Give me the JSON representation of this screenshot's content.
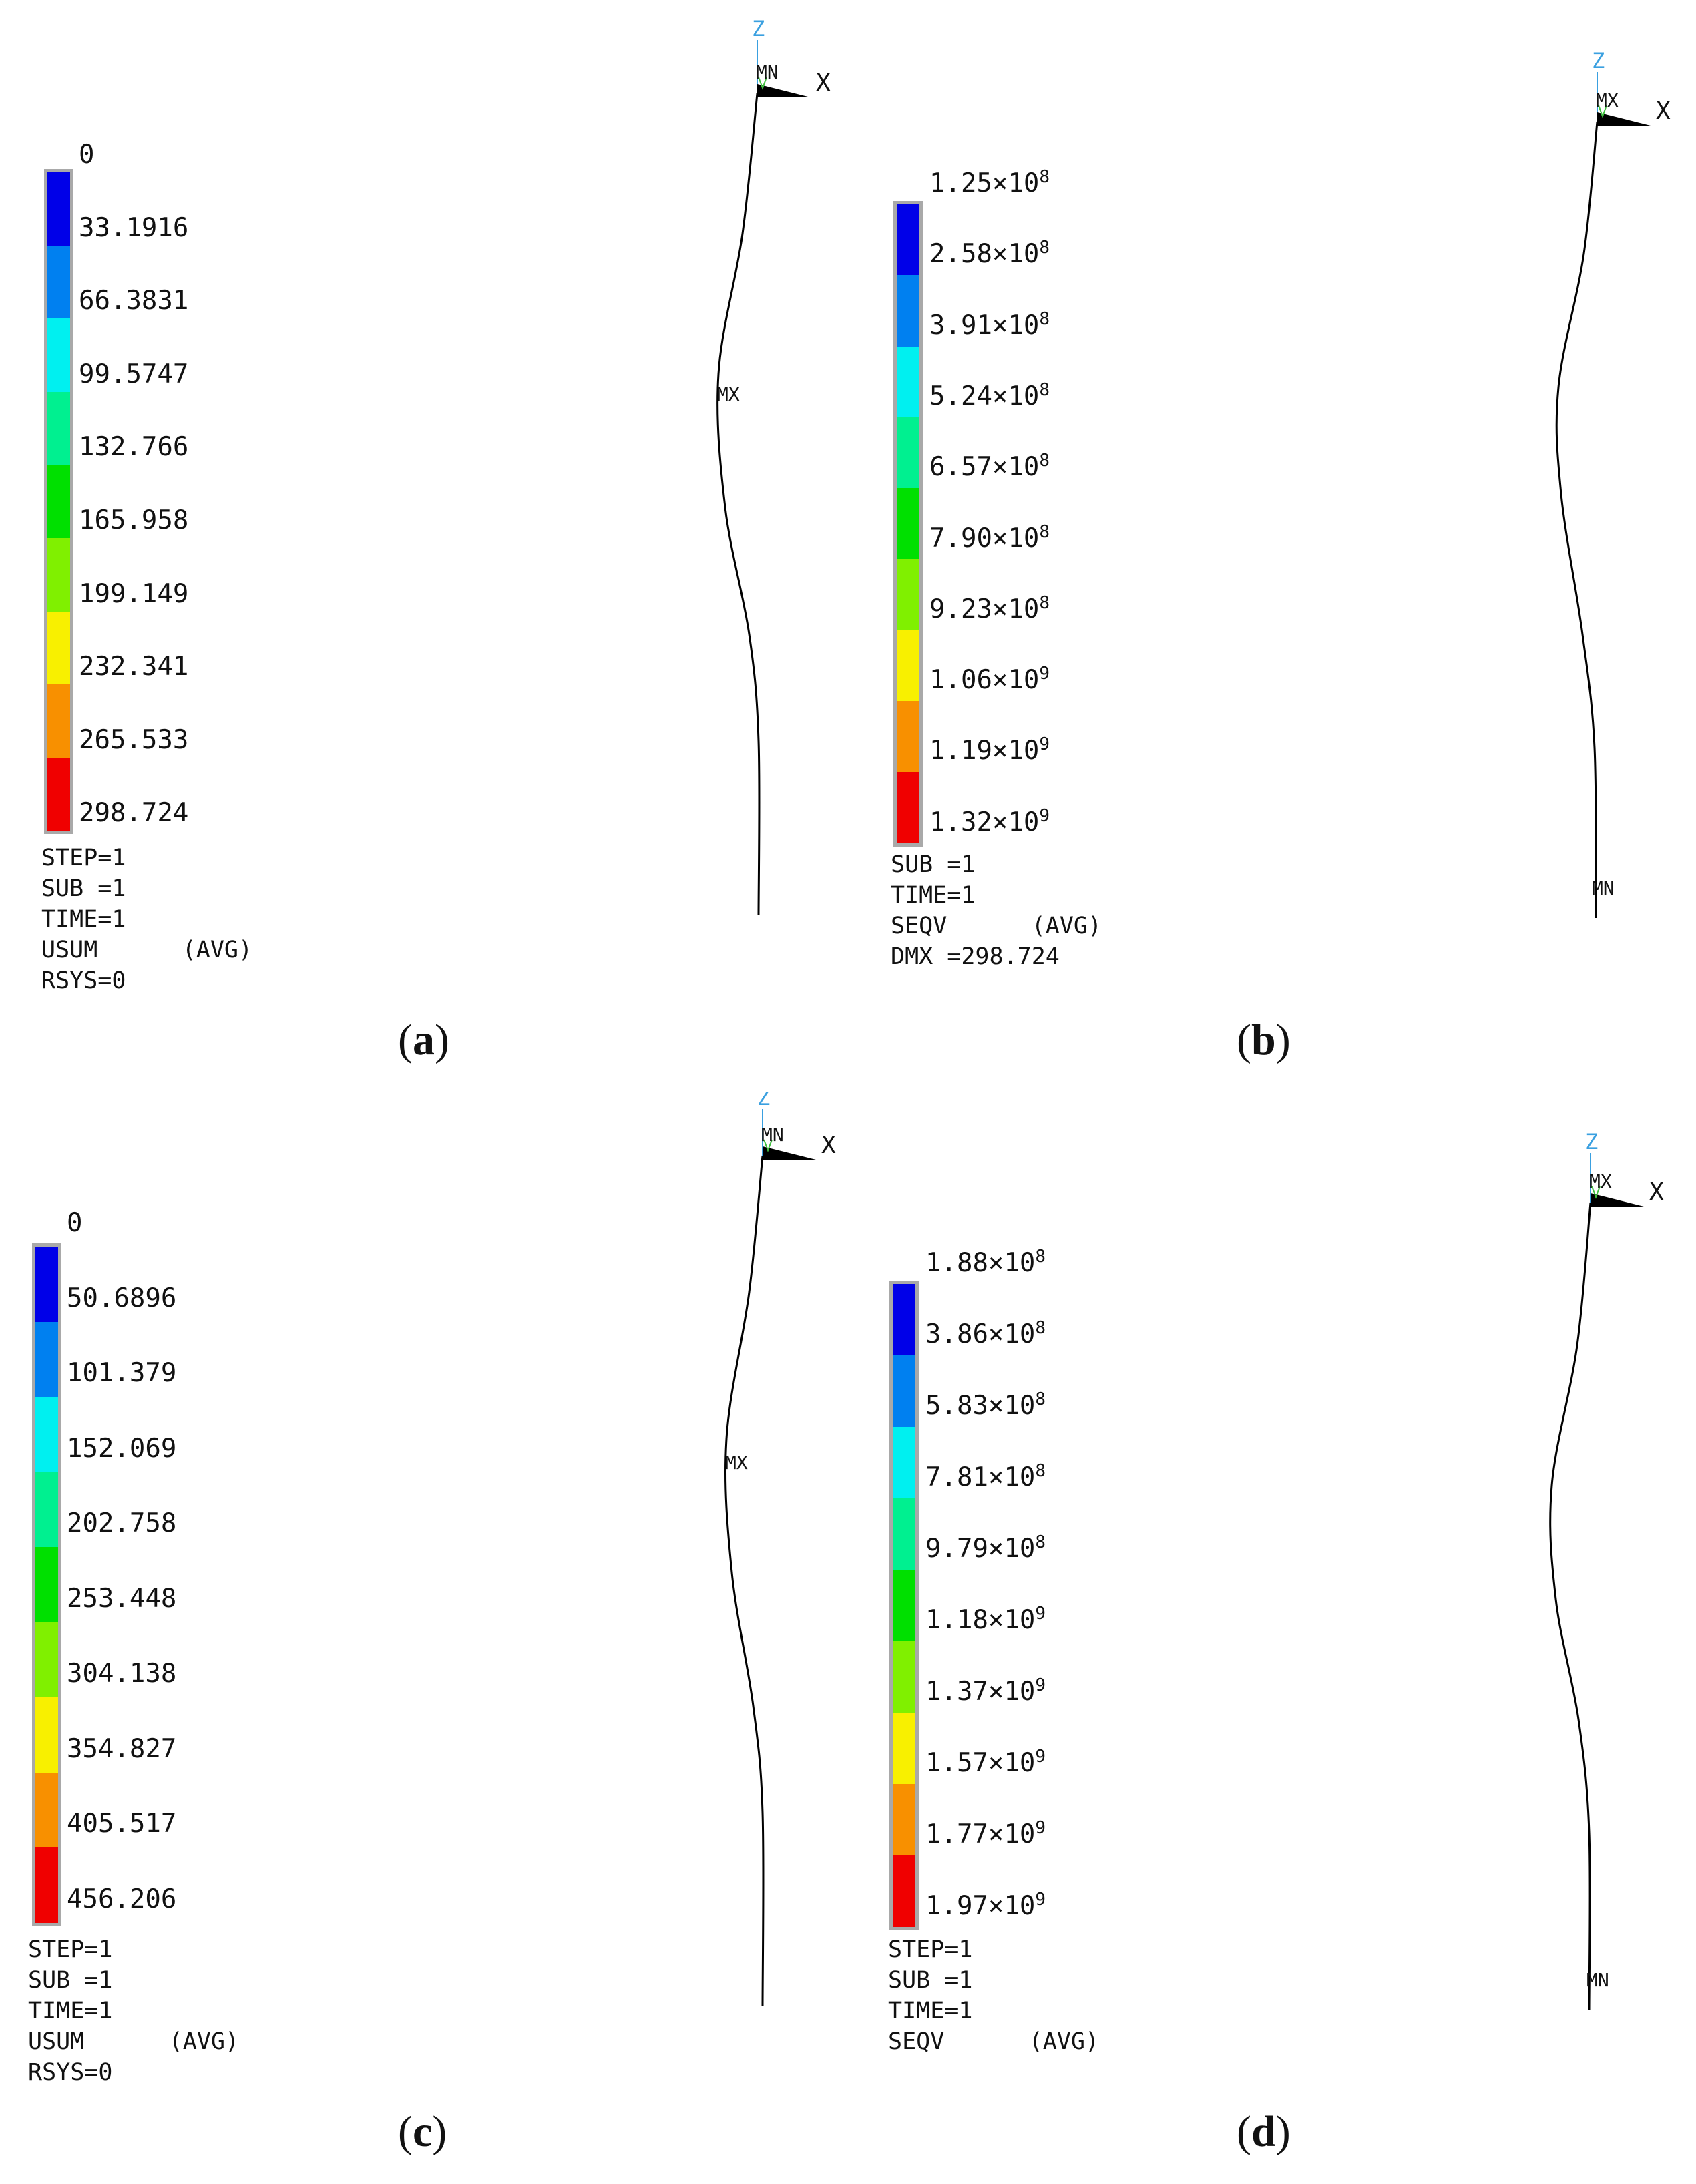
{
  "colors": {
    "levels": [
      "#0000e8",
      "#0080f0",
      "#00f0f0",
      "#00f090",
      "#00e000",
      "#80f000",
      "#f8f000",
      "#f89000",
      "#f00000"
    ],
    "frame": "#a9a9a9",
    "axis_z": "#3aa0e0",
    "triad": "#000000"
  },
  "panels": [
    {
      "caption": "a",
      "legend": {
        "labels": [
          "0",
          "33.1916",
          "66.3831",
          "99.5747",
          "132.766",
          "165.958",
          "199.149",
          "232.341",
          "265.533",
          "298.724"
        ]
      },
      "info": [
        "STEP=1",
        "SUB =1",
        "TIME=1",
        "USUM      (AVG)",
        "RSYS=0"
      ],
      "axis": {
        "z": "Z",
        "x": "X",
        "origin_label": "MN"
      },
      "markers": [
        {
          "text": "MX"
        }
      ]
    },
    {
      "caption": "b",
      "legend": {
        "labels": [
          {
            "mant": "1.25",
            "exp": "8"
          },
          {
            "mant": "2.58",
            "exp": "8"
          },
          {
            "mant": "3.91",
            "exp": "8"
          },
          {
            "mant": "5.24",
            "exp": "8"
          },
          {
            "mant": "6.57",
            "exp": "8"
          },
          {
            "mant": "7.90",
            "exp": "8"
          },
          {
            "mant": "9.23",
            "exp": "8"
          },
          {
            "mant": "1.06",
            "exp": "9"
          },
          {
            "mant": "1.19",
            "exp": "9"
          },
          {
            "mant": "1.32",
            "exp": "9"
          }
        ]
      },
      "info": [
        "SUB =1",
        "TIME=1",
        "SEQV      (AVG)",
        "DMX =298.724"
      ],
      "axis": {
        "z": "Z",
        "x": "X",
        "origin_label": "MX"
      },
      "markers": [
        {
          "text": "MN"
        }
      ]
    },
    {
      "caption": "c",
      "legend": {
        "labels": [
          "0",
          "50.6896",
          "101.379",
          "152.069",
          "202.758",
          "253.448",
          "304.138",
          "354.827",
          "405.517",
          "456.206"
        ]
      },
      "info": [
        "STEP=1",
        "SUB =1",
        "TIME=1",
        "USUM      (AVG)",
        "RSYS=0"
      ],
      "axis": {
        "z": "Z",
        "x": "X",
        "origin_label": "MN"
      },
      "markers": [
        {
          "text": "MX"
        }
      ]
    },
    {
      "caption": "d",
      "legend": {
        "labels": [
          {
            "mant": "1.88",
            "exp": "8"
          },
          {
            "mant": "3.86",
            "exp": "8"
          },
          {
            "mant": "5.83",
            "exp": "8"
          },
          {
            "mant": "7.81",
            "exp": "8"
          },
          {
            "mant": "9.79",
            "exp": "8"
          },
          {
            "mant": "1.18",
            "exp": "9"
          },
          {
            "mant": "1.37",
            "exp": "9"
          },
          {
            "mant": "1.57",
            "exp": "9"
          },
          {
            "mant": "1.77",
            "exp": "9"
          },
          {
            "mant": "1.97",
            "exp": "9"
          }
        ]
      },
      "info": [
        "STEP=1",
        "SUB =1",
        "TIME=1",
        "SEQV      (AVG)"
      ],
      "axis": {
        "z": "Z",
        "x": "X",
        "origin_label": "MX"
      },
      "markers": [
        {
          "text": "MN"
        }
      ]
    }
  ]
}
